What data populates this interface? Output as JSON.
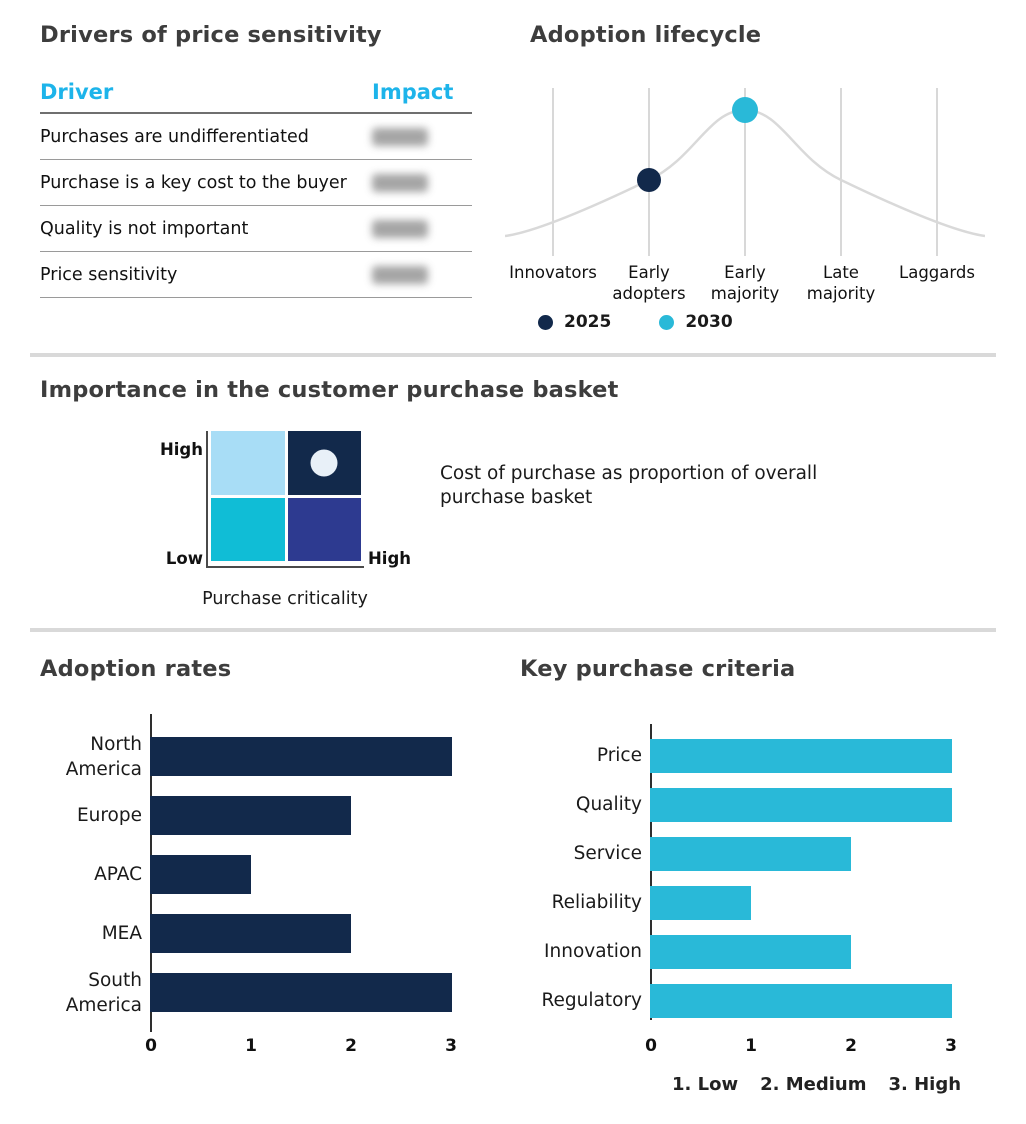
{
  "colors": {
    "navy": "#12294b",
    "cyan": "#29b9d8",
    "table_header_cyan": "#1db4ea",
    "curve_gray": "#d9d9d9",
    "divider_gray": "#d9d9d9",
    "title_text": "#3d3d3d"
  },
  "drivers_panel": {
    "title": "Drivers of price sensitivity",
    "table": {
      "col_driver": "Driver",
      "col_impact": "Impact",
      "rows": [
        {
          "driver": "Purchases are undifferentiated",
          "impact_blurred": true
        },
        {
          "driver": "Purchase is a key cost to the buyer",
          "impact_blurred": true
        },
        {
          "driver": "Quality is not important",
          "impact_blurred": true
        },
        {
          "driver": "Price sensitivity",
          "impact_blurred": true
        }
      ]
    }
  },
  "chart_data": [
    {
      "id": "adoption-lifecycle",
      "type": "line",
      "title": "Adoption lifecycle",
      "categories": [
        "Innovators",
        "Early adopters",
        "Early majority",
        "Late majority",
        "Laggards"
      ],
      "curve_shape": "bell curve peaking at Early majority",
      "curve_color": "#d9d9d9",
      "grid": "vertical gridline at each category",
      "points": [
        {
          "series": "2025",
          "category": "Early adopters",
          "color": "#12294b"
        },
        {
          "series": "2030",
          "category": "Early majority",
          "color": "#29b9d8"
        }
      ],
      "legend": [
        "2025",
        "2030"
      ],
      "legend_position": "bottom"
    },
    {
      "id": "purchase-basket-matrix",
      "type": "heatmap",
      "title": "Importance in the customer purchase basket",
      "x_axis_label": "Purchase criticality",
      "x_right_label": "High",
      "y_top_label": "High",
      "y_bottom_label": "Low",
      "annotation": "Cost of purchase as proportion of overall purchase basket",
      "quadrants": [
        {
          "position": "top-left",
          "color": "#a8ddf6"
        },
        {
          "position": "top-right",
          "color": "#12294b"
        },
        {
          "position": "bottom-left",
          "color": "#10bdd6"
        },
        {
          "position": "bottom-right",
          "color": "#2d3a90"
        }
      ],
      "marker": {
        "quadrant": "top-right",
        "color": "#e8f0f8"
      }
    },
    {
      "id": "adoption-rates",
      "type": "bar",
      "orientation": "horizontal",
      "title": "Adoption rates",
      "categories": [
        "North America",
        "Europe",
        "APAC",
        "MEA",
        "South America"
      ],
      "values": [
        3,
        2,
        1,
        2,
        3
      ],
      "bar_color": "#12294b",
      "xlim": [
        0,
        3
      ],
      "xticks": [
        "0",
        "1",
        "2",
        "3"
      ]
    },
    {
      "id": "key-purchase-criteria",
      "type": "bar",
      "orientation": "horizontal",
      "title": "Key purchase criteria",
      "categories": [
        "Price",
        "Quality",
        "Service",
        "Reliability",
        "Innovation",
        "Regulatory"
      ],
      "values": [
        3,
        3,
        2,
        1,
        2,
        3
      ],
      "bar_color": "#29b9d8",
      "xlim": [
        0,
        3
      ],
      "xticks": [
        "0",
        "1",
        "2",
        "3"
      ],
      "scale_note": [
        "1. Low",
        "2. Medium",
        "3. High"
      ]
    }
  ]
}
